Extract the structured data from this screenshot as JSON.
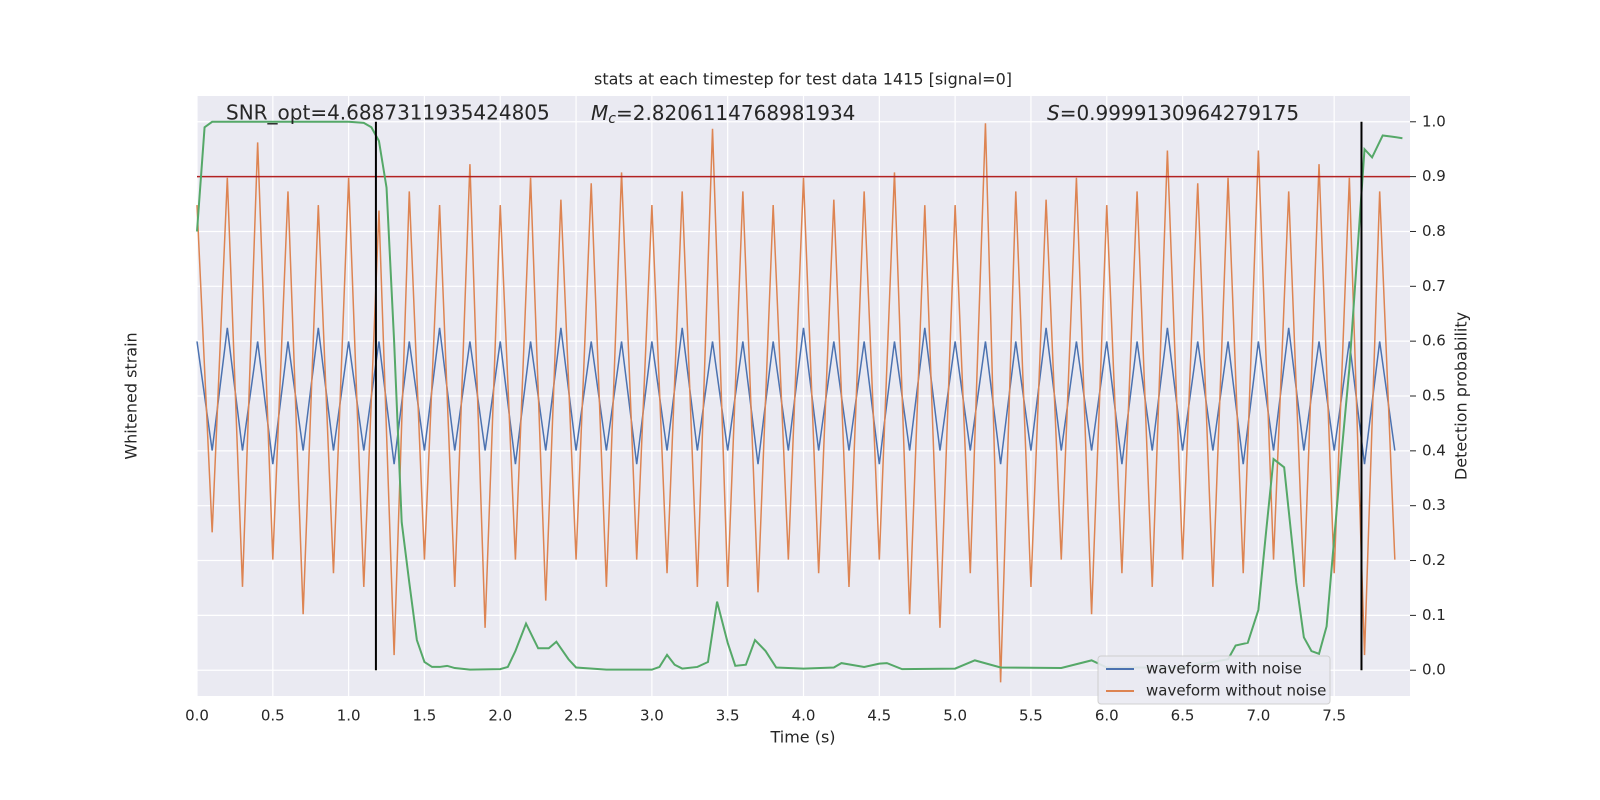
{
  "chart_data": {
    "type": "line",
    "title": "stats at each timestep for test data 1415 [signal=0]",
    "xlabel": "Time (s)",
    "ylabel": "Whitened strain",
    "y2label": "Detection probability",
    "annotations": {
      "snr": "SNR_opt=4.6887311935424805",
      "mc": {
        "symbol": "M",
        "sub": "c",
        "text": "=2.8206114768981934"
      },
      "s": {
        "symbol": "S",
        "text": "=0.9999130964279175"
      }
    },
    "xlim": [
      0,
      8
    ],
    "xticks": [
      {
        "value": 0,
        "label": "0.0"
      },
      {
        "value": 0.5,
        "label": "0.5"
      },
      {
        "value": 1,
        "label": "1.0"
      },
      {
        "value": 1.5,
        "label": "1.5"
      },
      {
        "value": 2,
        "label": "2.0"
      },
      {
        "value": 2.5,
        "label": "2.5"
      },
      {
        "value": 3,
        "label": "3.0"
      },
      {
        "value": 3.5,
        "label": "3.5"
      },
      {
        "value": 4,
        "label": "4.0"
      },
      {
        "value": 4.5,
        "label": "4.5"
      },
      {
        "value": 5,
        "label": "5.0"
      },
      {
        "value": 5.5,
        "label": "5.5"
      },
      {
        "value": 6,
        "label": "6.0"
      },
      {
        "value": 6.5,
        "label": "6.5"
      },
      {
        "value": 7,
        "label": "7.0"
      },
      {
        "value": 7.5,
        "label": "7.5"
      }
    ],
    "ylim": [
      -1.1,
      1.1
    ],
    "y2lim": [
      -0.047,
      1.047
    ],
    "y2ticks": [
      {
        "value": 0,
        "label": "0.0"
      },
      {
        "value": 0.1,
        "label": "0.1"
      },
      {
        "value": 0.2,
        "label": "0.2"
      },
      {
        "value": 0.3,
        "label": "0.3"
      },
      {
        "value": 0.4,
        "label": "0.4"
      },
      {
        "value": 0.5,
        "label": "0.5"
      },
      {
        "value": 0.6,
        "label": "0.6"
      },
      {
        "value": 0.7,
        "label": "0.7"
      },
      {
        "value": 0.8,
        "label": "0.8"
      },
      {
        "value": 0.9,
        "label": "0.9"
      },
      {
        "value": 1,
        "label": "1.0"
      }
    ],
    "grid": true,
    "legend": "lower right",
    "hline": {
      "value": 0.9,
      "color": "#b22222"
    },
    "vlines": [
      1.18,
      7.68
    ],
    "series": [
      {
        "name": "waveform with noise",
        "color": "#4c72b0",
        "x": [
          0,
          0.1,
          0.2,
          0.3,
          0.4,
          0.5,
          0.6,
          0.7,
          0.8,
          0.9,
          1,
          1.1,
          1.2,
          1.3,
          1.4,
          1.5,
          1.6,
          1.7,
          1.8,
          1.9,
          2,
          2.1,
          2.2,
          2.3,
          2.4,
          2.5,
          2.6,
          2.7,
          2.8,
          2.9,
          3,
          3.1,
          3.2,
          3.3,
          3.4,
          3.5,
          3.6,
          3.7,
          3.8,
          3.9,
          4,
          4.1,
          4.2,
          4.3,
          4.4,
          4.5,
          4.6,
          4.7,
          4.8,
          4.9,
          5,
          5.1,
          5.2,
          5.3,
          5.4,
          5.5,
          5.6,
          5.7,
          5.8,
          5.9,
          6,
          6.1,
          6.2,
          6.3,
          6.4,
          6.5,
          6.6,
          6.7,
          6.8,
          6.9,
          7,
          7.1,
          7.2,
          7.3,
          7.4,
          7.5,
          7.6,
          7.7,
          7.8,
          7.9
        ],
        "values": [
          0.2,
          -0.2,
          0.25,
          -0.2,
          0.2,
          -0.25,
          0.2,
          -0.2,
          0.25,
          -0.2,
          0.2,
          -0.2,
          0.2,
          -0.25,
          0.2,
          -0.2,
          0.25,
          -0.2,
          0.2,
          -0.2,
          0.2,
          -0.25,
          0.2,
          -0.2,
          0.25,
          -0.2,
          0.2,
          -0.2,
          0.2,
          -0.25,
          0.2,
          -0.2,
          0.25,
          -0.2,
          0.2,
          -0.2,
          0.2,
          -0.25,
          0.2,
          -0.2,
          0.25,
          -0.2,
          0.2,
          -0.2,
          0.2,
          -0.25,
          0.2,
          -0.2,
          0.25,
          -0.2,
          0.2,
          -0.2,
          0.2,
          -0.25,
          0.2,
          -0.2,
          0.25,
          -0.2,
          0.2,
          -0.2,
          0.2,
          -0.25,
          0.2,
          -0.2,
          0.25,
          -0.2,
          0.2,
          -0.2,
          0.2,
          -0.25,
          0.2,
          -0.2,
          0.25,
          -0.2,
          0.2,
          -0.2,
          0.2,
          -0.25,
          0.2,
          -0.2
        ]
      },
      {
        "name": "waveform without noise",
        "color": "#dd8452",
        "x": [
          0,
          0.1,
          0.2,
          0.3,
          0.4,
          0.5,
          0.6,
          0.7,
          0.8,
          0.9,
          1,
          1.1,
          1.2,
          1.3,
          1.4,
          1.5,
          1.6,
          1.7,
          1.8,
          1.9,
          2,
          2.1,
          2.2,
          2.3,
          2.4,
          2.5,
          2.6,
          2.7,
          2.8,
          2.9,
          3,
          3.1,
          3.2,
          3.3,
          3.4,
          3.5,
          3.6,
          3.7,
          3.8,
          3.9,
          4,
          4.1,
          4.2,
          4.3,
          4.4,
          4.5,
          4.6,
          4.7,
          4.8,
          4.9,
          5,
          5.1,
          5.2,
          5.3,
          5.4,
          5.5,
          5.6,
          5.7,
          5.8,
          5.9,
          6,
          6.1,
          6.2,
          6.3,
          6.4,
          6.5,
          6.6,
          6.7,
          6.8,
          6.9,
          7,
          7.1,
          7.2,
          7.3,
          7.4,
          7.5,
          7.6,
          7.7,
          7.8,
          7.9
        ],
        "values": [
          0.7,
          -0.5,
          0.8,
          -0.7,
          0.93,
          -0.6,
          0.75,
          -0.8,
          0.7,
          -0.65,
          0.8,
          -0.7,
          0.68,
          -0.95,
          0.75,
          -0.6,
          0.7,
          -0.7,
          0.85,
          -0.85,
          0.7,
          -0.6,
          0.8,
          -0.75,
          0.72,
          -0.6,
          0.78,
          -0.7,
          0.82,
          -0.6,
          0.7,
          -0.65,
          0.75,
          -0.7,
          0.98,
          -0.7,
          0.75,
          -0.72,
          0.7,
          -0.6,
          0.8,
          -0.65,
          0.72,
          -0.7,
          0.75,
          -0.6,
          0.82,
          -0.8,
          0.7,
          -0.85,
          0.7,
          -0.65,
          1.0,
          -1.05,
          0.75,
          -0.7,
          0.72,
          -0.6,
          0.8,
          -0.8,
          0.7,
          -0.65,
          0.75,
          -0.7,
          0.9,
          -0.6,
          0.78,
          -0.7,
          0.8,
          -0.65,
          0.9,
          -0.6,
          0.75,
          -0.7,
          0.85,
          -0.65,
          0.8,
          -0.95,
          0.75,
          -0.6
        ]
      }
    ],
    "probability": {
      "color": "#55a868",
      "x": [
        0,
        0.05,
        0.1,
        0.5,
        1,
        1.1,
        1.15,
        1.2,
        1.25,
        1.3,
        1.35,
        1.4,
        1.45,
        1.5,
        1.55,
        1.6,
        1.65,
        1.7,
        1.8,
        2,
        2.05,
        2.1,
        2.17,
        2.25,
        2.32,
        2.37,
        2.45,
        2.5,
        2.7,
        3,
        3.05,
        3.1,
        3.15,
        3.2,
        3.3,
        3.37,
        3.43,
        3.5,
        3.55,
        3.62,
        3.68,
        3.75,
        3.82,
        4,
        4.2,
        4.25,
        4.4,
        4.5,
        4.55,
        4.65,
        5,
        5.13,
        5.3,
        5.7,
        5.9,
        6,
        6.5,
        6.8,
        6.85,
        6.93,
        7,
        7.05,
        7.1,
        7.17,
        7.25,
        7.3,
        7.35,
        7.4,
        7.45,
        7.55,
        7.6,
        7.65,
        7.7,
        7.75,
        7.82,
        7.88,
        7.95
      ],
      "values": [
        0.8,
        0.99,
        1,
        1,
        1,
        0.998,
        0.99,
        0.965,
        0.88,
        0.6,
        0.27,
        0.16,
        0.055,
        0.015,
        0.006,
        0.006,
        0.008,
        0.004,
        0.001,
        0.002,
        0.006,
        0.035,
        0.085,
        0.04,
        0.04,
        0.052,
        0.02,
        0.005,
        0.001,
        0.001,
        0.006,
        0.028,
        0.01,
        0.003,
        0.006,
        0.015,
        0.125,
        0.05,
        0.008,
        0.01,
        0.055,
        0.035,
        0.005,
        0.003,
        0.005,
        0.013,
        0.006,
        0.012,
        0.013,
        0.002,
        0.003,
        0.018,
        0.005,
        0.004,
        0.018,
        0.005,
        0.005,
        0.02,
        0.045,
        0.05,
        0.11,
        0.25,
        0.385,
        0.37,
        0.16,
        0.06,
        0.035,
        0.03,
        0.08,
        0.4,
        0.55,
        0.75,
        0.95,
        0.935,
        0.975,
        0.973,
        0.97
      ]
    }
  }
}
